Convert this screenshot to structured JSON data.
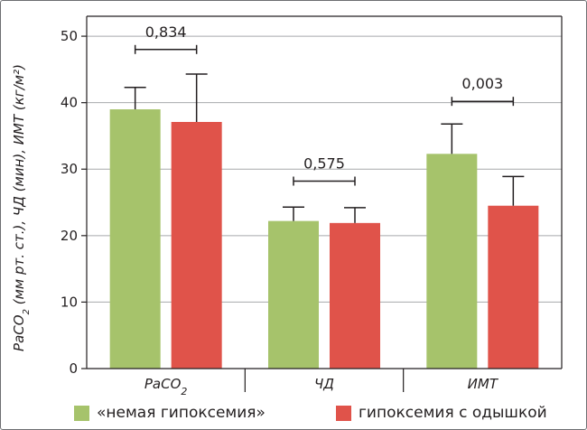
{
  "chart_data": {
    "type": "bar",
    "y_axis": {
      "label": "PaCO2 (мм рт. ст.), ЧД (мин), ИМТ (кг/м²)",
      "ylim": [
        0,
        53
      ],
      "ticks": [
        "0",
        "10",
        "20",
        "30",
        "40",
        "50"
      ]
    },
    "categories": [
      {
        "label": "PaCO",
        "sub": "2"
      },
      {
        "label": "ЧД",
        "sub": ""
      },
      {
        "label": "ИМТ",
        "sub": ""
      }
    ],
    "series": [
      {
        "name": "«немая гипоксемия»",
        "color": "#a6c36b",
        "values": [
          39.0,
          22.2,
          32.3
        ],
        "errors": [
          3.3,
          2.1,
          4.5
        ]
      },
      {
        "name": "гипоксемия с одышкой",
        "color": "#e0534a",
        "values": [
          37.1,
          21.9,
          24.5
        ],
        "errors": [
          7.2,
          2.3,
          4.4
        ]
      }
    ],
    "p_values": [
      {
        "category": 0,
        "text": "0,834",
        "level": 48.0
      },
      {
        "category": 1,
        "text": "0,575",
        "level": 28.2
      },
      {
        "category": 2,
        "text": "0,003",
        "level": 40.2
      }
    ],
    "grid": true,
    "legend_position": "bottom"
  }
}
